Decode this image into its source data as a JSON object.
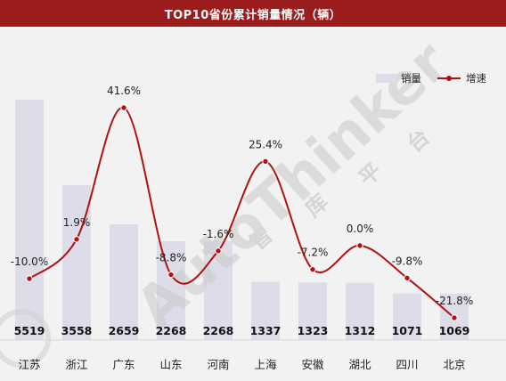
{
  "title": "TOP10省份累计销量情况（辆）",
  "legend": {
    "bar_label": "销量",
    "line_label": "增速"
  },
  "colors": {
    "bar": "#dcdde8",
    "line": "#b01212",
    "title_bg": "#9b1c1c"
  },
  "chart_data": {
    "type": "bar",
    "categories": [
      "江苏",
      "浙江",
      "广东",
      "山东",
      "河南",
      "上海",
      "安徽",
      "湖北",
      "四川",
      "北京"
    ],
    "series": [
      {
        "name": "销量",
        "type": "bar",
        "values": [
          5519,
          3558,
          2659,
          2268,
          2268,
          1337,
          1323,
          1312,
          1071,
          1069
        ]
      },
      {
        "name": "增速",
        "type": "line",
        "values": [
          -10.0,
          1.9,
          41.6,
          -8.8,
          -1.6,
          25.4,
          -7.2,
          0.0,
          -9.8,
          -21.8
        ]
      }
    ],
    "bar_labels": [
      "5519",
      "3558",
      "2659",
      "2268",
      "2268",
      "1337",
      "1323",
      "1312",
      "1071",
      "1069"
    ],
    "line_labels": [
      "-10.0%",
      "1.9%",
      "41.6%",
      "-8.8%",
      "-1.6%",
      "25.4%",
      "-7.2%",
      "0.0%",
      "-9.8%",
      "-21.8%"
    ],
    "ylim_bar": [
      0,
      5519
    ],
    "ylim_line": [
      -21.8,
      41.6
    ],
    "legend_position": "top-right"
  },
  "watermark": {
    "brand": "AutoThinker",
    "platform_chars": [
      "智",
      "库",
      "平",
      "台"
    ]
  }
}
